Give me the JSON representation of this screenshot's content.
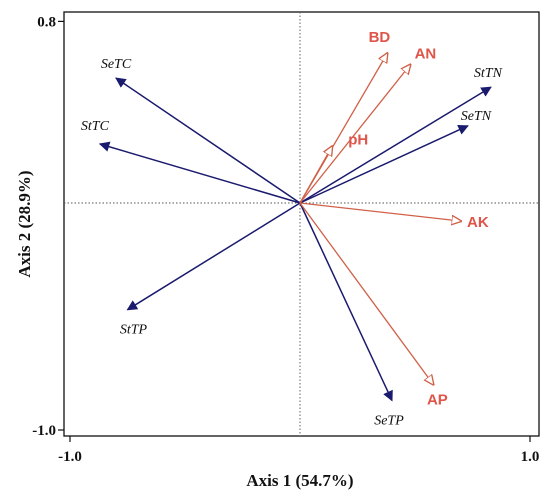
{
  "chart_data": {
    "type": "scatter",
    "subtype": "rda-biplot",
    "xlabel": "Axis 1 (54.7%)",
    "ylabel": "Axis 2 (28.9%)",
    "xlim": [
      -1.05,
      1.05
    ],
    "ylim": [
      -1.05,
      0.85
    ],
    "xticks": [
      "-1.0",
      "1.0"
    ],
    "yticks": [
      "0.8",
      "-1.0"
    ],
    "species_color": "#1a1a6e",
    "env_color": "#d06048",
    "label_env_color": "#e0554a",
    "reference_lines": "dotted at x=0 and y=0",
    "species": [
      {
        "name": "SeTC",
        "x": -0.8,
        "y": 0.55
      },
      {
        "name": "StTC",
        "x": -0.87,
        "y": 0.26
      },
      {
        "name": "StTP",
        "x": -0.75,
        "y": -0.47
      },
      {
        "name": "StTN",
        "x": 0.83,
        "y": 0.51
      },
      {
        "name": "SeTN",
        "x": 0.73,
        "y": 0.34
      },
      {
        "name": "SeTP",
        "x": 0.4,
        "y": -0.87
      }
    ],
    "environment": [
      {
        "name": "BD",
        "x": 0.38,
        "y": 0.66
      },
      {
        "name": "AN",
        "x": 0.48,
        "y": 0.61
      },
      {
        "name": "pH",
        "x": 0.14,
        "y": 0.25
      },
      {
        "name": "AK",
        "x": 0.7,
        "y": -0.08
      },
      {
        "name": "AP",
        "x": 0.58,
        "y": -0.8
      }
    ]
  }
}
